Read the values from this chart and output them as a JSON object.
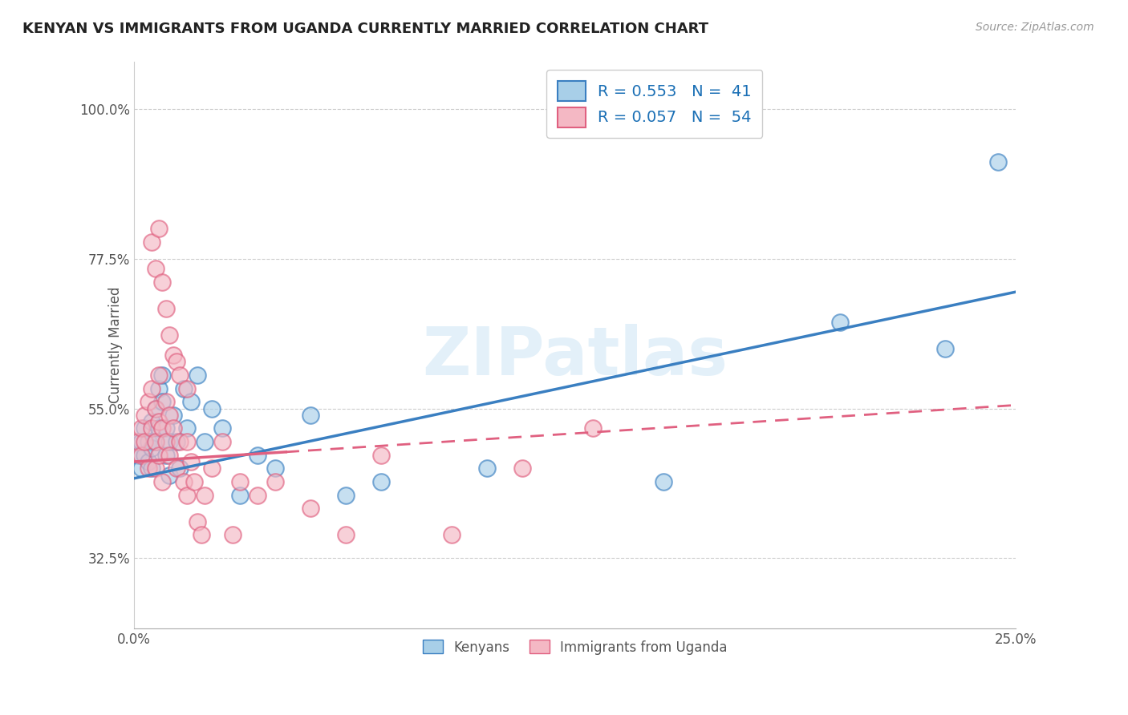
{
  "title": "KENYAN VS IMMIGRANTS FROM UGANDA CURRENTLY MARRIED CORRELATION CHART",
  "source": "Source: ZipAtlas.com",
  "ylabel": "Currently Married",
  "xmin": 0.0,
  "xmax": 0.25,
  "ymin": 0.22,
  "ymax": 1.07,
  "legend_r1": "R = 0.553",
  "legend_n1": "N =  41",
  "legend_r2": "R = 0.057",
  "legend_n2": "N =  54",
  "color_blue": "#a8cfe8",
  "color_pink": "#f4b8c4",
  "color_blue_line": "#3a7fc1",
  "color_pink_line": "#e06080",
  "watermark": "ZIPatlas",
  "blue_trend_x0": 0.0,
  "blue_trend_y0": 0.445,
  "blue_trend_x1": 0.25,
  "blue_trend_y1": 0.725,
  "pink_trend_x0": 0.0,
  "pink_trend_y0": 0.47,
  "pink_trend_x1": 0.25,
  "pink_trend_y1": 0.555,
  "blue_x": [
    0.001,
    0.002,
    0.002,
    0.003,
    0.003,
    0.004,
    0.004,
    0.005,
    0.005,
    0.005,
    0.006,
    0.006,
    0.007,
    0.007,
    0.008,
    0.008,
    0.009,
    0.009,
    0.01,
    0.01,
    0.011,
    0.012,
    0.013,
    0.014,
    0.015,
    0.016,
    0.018,
    0.02,
    0.022,
    0.025,
    0.03,
    0.035,
    0.04,
    0.05,
    0.06,
    0.07,
    0.1,
    0.15,
    0.2,
    0.23,
    0.245
  ],
  "blue_y": [
    0.48,
    0.5,
    0.46,
    0.52,
    0.48,
    0.5,
    0.47,
    0.53,
    0.49,
    0.46,
    0.55,
    0.5,
    0.58,
    0.52,
    0.6,
    0.56,
    0.48,
    0.52,
    0.5,
    0.45,
    0.54,
    0.5,
    0.46,
    0.58,
    0.52,
    0.56,
    0.6,
    0.5,
    0.55,
    0.52,
    0.42,
    0.48,
    0.46,
    0.54,
    0.42,
    0.44,
    0.46,
    0.44,
    0.68,
    0.64,
    0.92
  ],
  "pink_x": [
    0.001,
    0.002,
    0.002,
    0.003,
    0.003,
    0.004,
    0.004,
    0.005,
    0.005,
    0.006,
    0.006,
    0.006,
    0.007,
    0.007,
    0.007,
    0.008,
    0.008,
    0.009,
    0.009,
    0.01,
    0.01,
    0.011,
    0.012,
    0.013,
    0.014,
    0.015,
    0.015,
    0.016,
    0.017,
    0.018,
    0.019,
    0.02,
    0.022,
    0.025,
    0.028,
    0.03,
    0.035,
    0.04,
    0.05,
    0.06,
    0.07,
    0.09,
    0.11,
    0.13,
    0.005,
    0.006,
    0.007,
    0.008,
    0.009,
    0.01,
    0.011,
    0.012,
    0.013,
    0.015
  ],
  "pink_y": [
    0.5,
    0.52,
    0.48,
    0.54,
    0.5,
    0.56,
    0.46,
    0.58,
    0.52,
    0.55,
    0.5,
    0.46,
    0.53,
    0.48,
    0.6,
    0.52,
    0.44,
    0.5,
    0.56,
    0.48,
    0.54,
    0.52,
    0.46,
    0.5,
    0.44,
    0.42,
    0.5,
    0.47,
    0.44,
    0.38,
    0.36,
    0.42,
    0.46,
    0.5,
    0.36,
    0.44,
    0.42,
    0.44,
    0.4,
    0.36,
    0.48,
    0.36,
    0.46,
    0.52,
    0.8,
    0.76,
    0.82,
    0.74,
    0.7,
    0.66,
    0.63,
    0.62,
    0.6,
    0.58
  ]
}
